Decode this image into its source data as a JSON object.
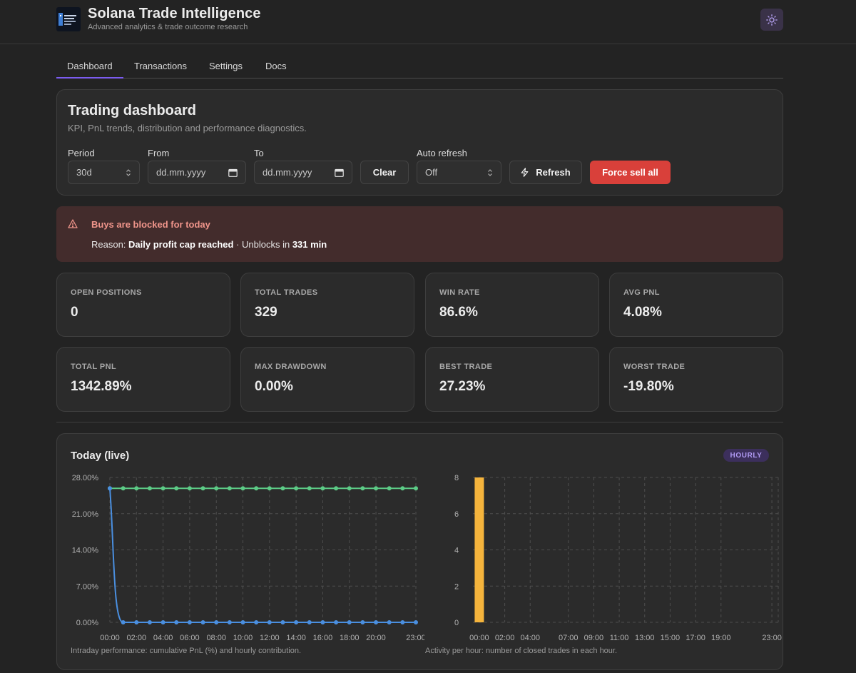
{
  "header": {
    "title": "Solana Trade Intelligence",
    "subtitle": "Advanced analytics & trade outcome research",
    "theme_icon": "sun-icon"
  },
  "tabs": [
    {
      "label": "Dashboard",
      "active": true
    },
    {
      "label": "Transactions",
      "active": false
    },
    {
      "label": "Settings",
      "active": false
    },
    {
      "label": "Docs",
      "active": false
    }
  ],
  "dashboard": {
    "title": "Trading dashboard",
    "subtitle": "KPI, PnL trends, distribution and performance diagnostics.",
    "filters": {
      "period_label": "Period",
      "period_value": "30d",
      "from_label": "From",
      "from_placeholder": "dd.mm.yyyy",
      "to_label": "To",
      "to_placeholder": "dd.mm.yyyy",
      "clear_label": "Clear",
      "auto_refresh_label": "Auto refresh",
      "auto_refresh_value": "Off",
      "refresh_label": "Refresh",
      "force_sell_label": "Force sell all"
    }
  },
  "alert": {
    "title": "Buys are blocked for today",
    "reason_prefix": "Reason: ",
    "reason": "Daily profit cap reached",
    "middle": " · Unblocks in ",
    "unblock": "331 min",
    "color": "#f0958b"
  },
  "kpis": [
    {
      "label": "OPEN POSITIONS",
      "value": "0"
    },
    {
      "label": "TOTAL TRADES",
      "value": "329"
    },
    {
      "label": "WIN RATE",
      "value": "86.6%"
    },
    {
      "label": "AVG PNL",
      "value": "4.08%"
    },
    {
      "label": "TOTAL PNL",
      "value": "1342.89%"
    },
    {
      "label": "MAX DRAWDOWN",
      "value": "0.00%"
    },
    {
      "label": "BEST TRADE",
      "value": "27.23%"
    },
    {
      "label": "WORST TRADE",
      "value": "-19.80%"
    }
  ],
  "today": {
    "title": "Today (live)",
    "badge": "HOURLY",
    "left_caption": "Intraday performance: cumulative PnL (%) and hourly contribution.",
    "right_caption": "Activity per hour: number of closed trades in each hour."
  },
  "chart_data": [
    {
      "type": "line",
      "title": "",
      "xlabel": "",
      "ylabel": "",
      "ylim": [
        0,
        28
      ],
      "y_ticks": [
        "28.00%",
        "21.00%",
        "14.00%",
        "7.00%",
        "0.00%"
      ],
      "x": [
        "00:00",
        "01:00",
        "02:00",
        "03:00",
        "04:00",
        "05:00",
        "06:00",
        "07:00",
        "08:00",
        "09:00",
        "10:00",
        "11:00",
        "12:00",
        "13:00",
        "14:00",
        "15:00",
        "16:00",
        "17:00",
        "18:00",
        "19:00",
        "20:00",
        "21:00",
        "22:00",
        "23:00"
      ],
      "x_tick_labels": [
        "00:00",
        "02:00",
        "04:00",
        "06:00",
        "08:00",
        "10:00",
        "12:00",
        "14:00",
        "16:00",
        "18:00",
        "20:00",
        "23:00"
      ],
      "grid": true,
      "series": [
        {
          "values": [
            25.9,
            25.9,
            25.9,
            25.9,
            25.9,
            25.9,
            25.9,
            25.9,
            25.9,
            25.9,
            25.9,
            25.9,
            25.9,
            25.9,
            25.9,
            25.9,
            25.9,
            25.9,
            25.9,
            25.9,
            25.9,
            25.9,
            25.9,
            25.9
          ],
          "color": "#5ccb86"
        },
        {
          "values": [
            25.9,
            0,
            0,
            0,
            0,
            0,
            0,
            0,
            0,
            0,
            0,
            0,
            0,
            0,
            0,
            0,
            0,
            0,
            0,
            0,
            0,
            0,
            0,
            0
          ],
          "color": "#4a8fe0"
        }
      ]
    },
    {
      "type": "bar",
      "title": "",
      "xlabel": "",
      "ylabel": "",
      "ylim": [
        0,
        8
      ],
      "y_ticks": [
        "8",
        "6",
        "4",
        "2",
        "0"
      ],
      "categories": [
        "00:00",
        "01:00",
        "02:00",
        "03:00",
        "04:00",
        "05:00",
        "06:00",
        "07:00",
        "08:00",
        "09:00",
        "10:00",
        "11:00",
        "12:00",
        "13:00",
        "14:00",
        "15:00",
        "16:00",
        "17:00",
        "18:00",
        "19:00",
        "20:00",
        "21:00",
        "22:00",
        "23:00"
      ],
      "x_tick_labels": [
        "00:00",
        "02:00",
        "04:00",
        "07:00",
        "09:00",
        "11:00",
        "13:00",
        "15:00",
        "17:00",
        "19:00",
        "23:00"
      ],
      "grid": true,
      "values": [
        8,
        0,
        0,
        0,
        0,
        0,
        0,
        0,
        0,
        0,
        0,
        0,
        0,
        0,
        0,
        0,
        0,
        0,
        0,
        0,
        0,
        0,
        0,
        0
      ],
      "color": "#f5b43c"
    }
  ]
}
